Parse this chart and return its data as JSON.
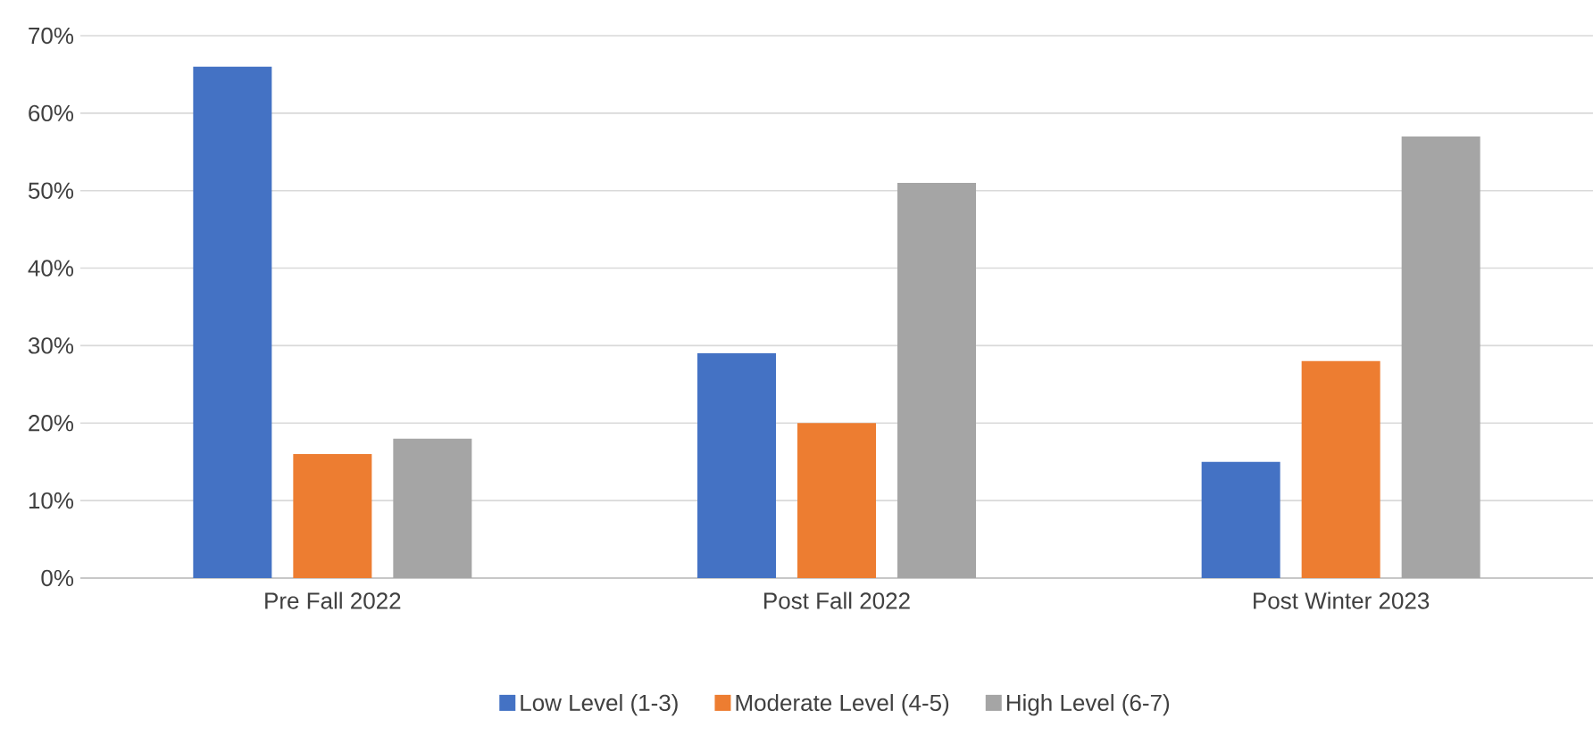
{
  "chart_data": {
    "type": "bar",
    "categories": [
      "Pre Fall 2022",
      "Post Fall 2022",
      "Post Winter 2023"
    ],
    "series": [
      {
        "name": "Low Level (1-3)",
        "color": "#4472c4",
        "values": [
          66,
          29,
          15
        ]
      },
      {
        "name": "Moderate Level (4-5)",
        "color": "#ed7d31",
        "values": [
          16,
          20,
          28
        ]
      },
      {
        "name": "High Level (6-7)",
        "color": "#a5a5a5",
        "values": [
          18,
          51,
          57
        ]
      }
    ],
    "ylim": [
      0,
      70
    ],
    "yticks": [
      {
        "value": 0,
        "label": "0%"
      },
      {
        "value": 10,
        "label": "10%"
      },
      {
        "value": 20,
        "label": "20%"
      },
      {
        "value": 30,
        "label": "30%"
      },
      {
        "value": 40,
        "label": "40%"
      },
      {
        "value": 50,
        "label": "50%"
      },
      {
        "value": 60,
        "label": "60%"
      },
      {
        "value": 70,
        "label": "70%"
      }
    ],
    "grid": "y",
    "legend": "bottom"
  }
}
